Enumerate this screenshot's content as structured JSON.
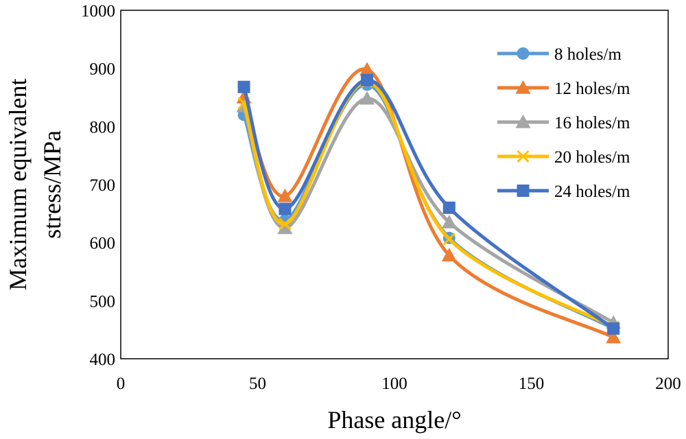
{
  "chart_data": {
    "type": "line",
    "smooth": true,
    "xlabel": "Phase angle/°",
    "ylabel_lines": [
      "Maximum equivalent",
      "stress/MPa"
    ],
    "xlim": [
      0,
      200
    ],
    "ylim": [
      400,
      1000
    ],
    "xticks": [
      0,
      50,
      100,
      150,
      200
    ],
    "yticks": [
      400,
      500,
      600,
      700,
      800,
      900,
      1000
    ],
    "grid": false,
    "legend_position": "top-right",
    "series": [
      {
        "name": "8 holes/m",
        "color": "#5b9bd5",
        "marker": "circle",
        "x": [
          45,
          60,
          90,
          120,
          180
        ],
        "y": [
          820,
          638,
          872,
          608,
          452
        ]
      },
      {
        "name": "12 holes/m",
        "color": "#ed7d31",
        "marker": "triangle",
        "x": [
          45,
          60,
          90,
          120,
          180
        ],
        "y": [
          850,
          680,
          898,
          578,
          437
        ]
      },
      {
        "name": "16 holes/m",
        "color": "#a5a5a5",
        "marker": "triangle",
        "x": [
          45,
          60,
          90,
          120,
          180
        ],
        "y": [
          835,
          625,
          848,
          635,
          462
        ]
      },
      {
        "name": "20 holes/m",
        "color": "#ffc000",
        "marker": "x",
        "x": [
          45,
          60,
          90,
          120,
          180
        ],
        "y": [
          840,
          632,
          877,
          606,
          455
        ]
      },
      {
        "name": "24 holes/m",
        "color": "#4472c4",
        "marker": "square",
        "x": [
          45,
          60,
          90,
          120,
          180
        ],
        "y": [
          868,
          658,
          880,
          660,
          452
        ]
      }
    ]
  }
}
